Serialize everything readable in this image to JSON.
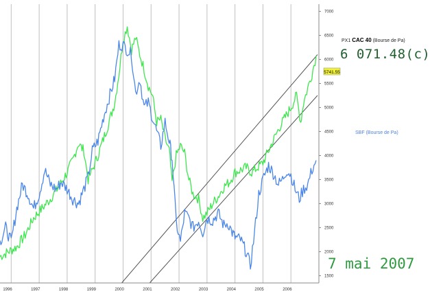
{
  "chart_data": {
    "type": "line",
    "x_ticks": [
      "1996",
      "1997",
      "1998",
      "1999",
      "2000",
      "2001",
      "2002",
      "2003",
      "2004",
      "2005",
      "2006"
    ],
    "y_ticks": [
      "1500",
      "2000",
      "2500",
      "3000",
      "3500",
      "4000",
      "4500",
      "5000",
      "5500",
      "6000",
      "6500",
      "7000"
    ],
    "xlim": [
      1995.6,
      2007.0
    ],
    "ylim": [
      1350,
      7150
    ],
    "grid": true,
    "series": [
      {
        "name": "CAC 40",
        "color": "#3ee64e",
        "x": [
          1995.6,
          1995.9,
          1996.2,
          1996.5,
          1996.8,
          1997.1,
          1997.4,
          1997.7,
          1998.0,
          1998.2,
          1998.4,
          1998.6,
          1998.75,
          1998.9,
          1999.1,
          1999.3,
          1999.5,
          1999.7,
          1999.85,
          2000.0,
          2000.15,
          2000.3,
          2000.45,
          2000.6,
          2000.75,
          2000.9,
          2001.05,
          2001.2,
          2001.35,
          2001.5,
          2001.65,
          2001.75,
          2001.9,
          2002.05,
          2002.2,
          2002.35,
          2002.5,
          2002.7,
          2002.85,
          2003.0,
          2003.2,
          2003.4,
          2003.6,
          2003.8,
          2004.0,
          2004.2,
          2004.4,
          2004.6,
          2004.8,
          2005.0,
          2005.2,
          2005.4,
          2005.6,
          2005.8,
          2006.0,
          2006.2,
          2006.35,
          2006.45,
          2006.6,
          2006.75,
          2006.9
        ],
        "values": [
          1900,
          2000,
          2100,
          2350,
          2700,
          2900,
          3100,
          3350,
          3650,
          3900,
          4250,
          4100,
          3500,
          3700,
          4000,
          4350,
          4700,
          5100,
          5700,
          6400,
          6700,
          6200,
          6450,
          6100,
          5800,
          5450,
          5250,
          4700,
          4750,
          4350,
          4100,
          3450,
          4000,
          4200,
          4050,
          3500,
          3200,
          3100,
          2700,
          2800,
          3000,
          3150,
          3350,
          3450,
          3650,
          3700,
          3750,
          3650,
          3750,
          3850,
          4100,
          4350,
          4600,
          4800,
          5000,
          5250,
          4700,
          5100,
          5400,
          5700,
          6071
        ]
      },
      {
        "name": "SBF",
        "color": "#4a86e8",
        "x": [
          1995.6,
          1995.8,
          1996.0,
          1996.2,
          1996.4,
          1996.6,
          1996.8,
          1997.0,
          1997.2,
          1997.4,
          1997.6,
          1997.8,
          1998.0,
          1998.2,
          1998.4,
          1998.6,
          1998.75,
          1998.9,
          1999.1,
          1999.3,
          1999.5,
          1999.7,
          1999.85,
          2000.0,
          2000.15,
          2000.3,
          2000.45,
          2000.6,
          2000.75,
          2000.9,
          2001.05,
          2001.2,
          2001.35,
          2001.5,
          2001.65,
          2001.75,
          2001.9,
          2002.05,
          2002.2,
          2002.35,
          2002.5,
          2002.7,
          2002.85,
          2003.0,
          2003.2,
          2003.4,
          2003.6,
          2003.75,
          2003.9,
          2004.0,
          2004.2,
          2004.4,
          2004.55,
          2004.7,
          2004.85,
          2005.0,
          2005.2,
          2005.4,
          2005.55,
          2005.7,
          2005.85,
          2006.0,
          2006.15,
          2006.3,
          2006.45,
          2006.6,
          2006.75,
          2006.9
        ],
        "values": [
          2200,
          2500,
          2200,
          2900,
          3400,
          3200,
          2900,
          3200,
          3700,
          3400,
          3300,
          3450,
          3300,
          3100,
          3000,
          3300,
          3550,
          4100,
          4300,
          4800,
          5200,
          5600,
          6300,
          6300,
          6200,
          6100,
          5300,
          5600,
          5000,
          5100,
          4800,
          4500,
          4200,
          4700,
          4300,
          3950,
          2600,
          2200,
          2800,
          2700,
          2500,
          2650,
          2400,
          2700,
          2650,
          2800,
          2550,
          2600,
          2400,
          2300,
          2250,
          2000,
          1700,
          2400,
          3200,
          3500,
          3800,
          3600,
          3400,
          3500,
          3700,
          3600,
          3300,
          3100,
          3300,
          3400,
          3700,
          3900
        ]
      }
    ]
  },
  "header": {
    "title_prefix": "PX1",
    "title_name": "CAC 40",
    "title_suffix": "(Bourse de Pa)",
    "last_value": "6 071.48(c)",
    "price_tag": "5741.55"
  },
  "legend": {
    "sbf_name": "SBF",
    "sbf_suffix": "(Bourse de Pa)"
  },
  "date_label": "7 mai 2007",
  "colors": {
    "cac": "#3ee64e",
    "sbf": "#4a86e8",
    "channel": "#555555",
    "grid": "#bfbfbf",
    "tag_bg": "#f2f23a"
  }
}
